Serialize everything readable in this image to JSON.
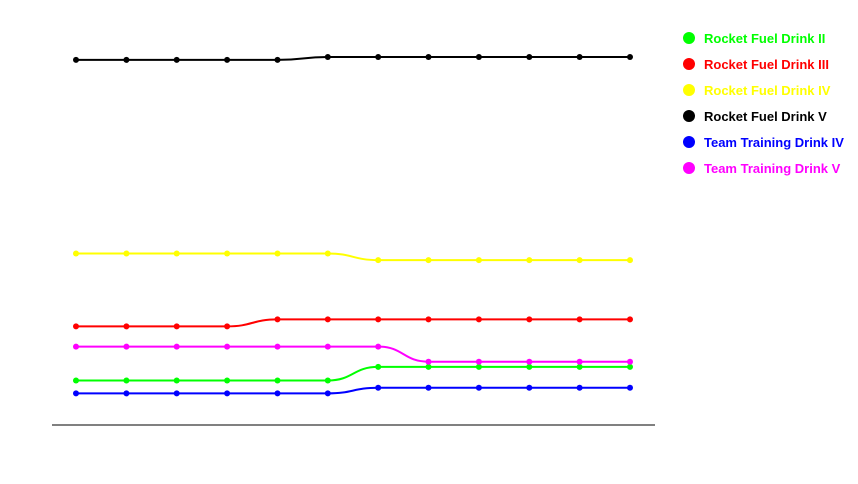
{
  "chart_data": {
    "type": "line",
    "title": "",
    "xlabel": "",
    "ylabel": "",
    "x": [
      1,
      2,
      3,
      4,
      5,
      6,
      7,
      8,
      9,
      10,
      11,
      12
    ],
    "ylim": [
      0,
      100
    ],
    "grid": false,
    "legend_position": "top-right",
    "series": [
      {
        "name": "Rocket Fuel Drink II",
        "color": "#00ff00",
        "values": [
          12.1,
          12.1,
          12.1,
          12.1,
          12.1,
          12.1,
          15.8,
          15.8,
          15.8,
          15.8,
          15.8,
          15.8
        ]
      },
      {
        "name": "Rocket Fuel Drink III",
        "color": "#ff0000",
        "values": [
          26.8,
          26.8,
          26.8,
          26.8,
          28.7,
          28.7,
          28.7,
          28.7,
          28.7,
          28.7,
          28.7,
          28.7
        ]
      },
      {
        "name": "Rocket Fuel Drink IV",
        "color": "#ffff00",
        "values": [
          46.6,
          46.6,
          46.6,
          46.6,
          46.6,
          46.6,
          44.8,
          44.8,
          44.8,
          44.8,
          44.8,
          44.8
        ]
      },
      {
        "name": "Rocket Fuel Drink V",
        "color": "#000000",
        "values": [
          99.2,
          99.2,
          99.2,
          99.2,
          99.2,
          100,
          100,
          100,
          100,
          100,
          100,
          100
        ]
      },
      {
        "name": "Team Training Drink IV",
        "color": "#0000ff",
        "values": [
          8.6,
          8.6,
          8.6,
          8.6,
          8.6,
          8.6,
          10.1,
          10.1,
          10.1,
          10.1,
          10.1,
          10.1
        ]
      },
      {
        "name": "Team Training Drink V",
        "color": "#ff00ff",
        "values": [
          21.3,
          21.3,
          21.3,
          21.3,
          21.3,
          21.3,
          21.3,
          17.2,
          17.2,
          17.2,
          17.2,
          17.2
        ]
      }
    ]
  }
}
